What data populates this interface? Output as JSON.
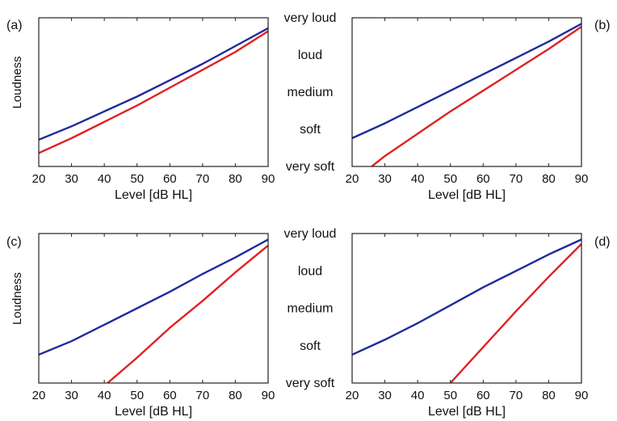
{
  "chart_data": [
    {
      "type": "line",
      "panel_label": "(a)",
      "xlabel": "Level [dB HL]",
      "ylabel": "Loudness",
      "xlim": [
        20,
        90
      ],
      "ylim": [
        0,
        1
      ],
      "xticks": [
        20,
        30,
        40,
        50,
        60,
        70,
        80,
        90
      ],
      "grid": false,
      "series": [
        {
          "color": "#1f2a9c",
          "x": [
            20,
            30,
            40,
            50,
            60,
            70,
            80,
            90
          ],
          "y": [
            0.18,
            0.27,
            0.37,
            0.47,
            0.58,
            0.69,
            0.81,
            0.93
          ]
        },
        {
          "color": "#e02222",
          "x": [
            20,
            30,
            40,
            50,
            60,
            70,
            80,
            90
          ],
          "y": [
            0.09,
            0.19,
            0.3,
            0.41,
            0.53,
            0.65,
            0.77,
            0.91
          ]
        }
      ]
    },
    {
      "type": "line",
      "panel_label": "(b)",
      "xlabel": "Level [dB HL]",
      "ylabel": "",
      "xlim": [
        20,
        90
      ],
      "ylim": [
        0,
        1
      ],
      "xticks": [
        20,
        30,
        40,
        50,
        60,
        70,
        80,
        90
      ],
      "grid": false,
      "series": [
        {
          "color": "#1f2a9c",
          "x": [
            20,
            30,
            40,
            50,
            60,
            70,
            80,
            90
          ],
          "y": [
            0.19,
            0.29,
            0.4,
            0.51,
            0.62,
            0.73,
            0.84,
            0.96
          ]
        },
        {
          "color": "#e02222",
          "x": [
            26,
            30,
            40,
            50,
            60,
            70,
            80,
            90
          ],
          "y": [
            0.0,
            0.07,
            0.22,
            0.37,
            0.51,
            0.65,
            0.79,
            0.94
          ]
        }
      ]
    },
    {
      "type": "line",
      "panel_label": "(c)",
      "xlabel": "Level [dB HL]",
      "ylabel": "Loudness",
      "xlim": [
        20,
        90
      ],
      "ylim": [
        0,
        1
      ],
      "xticks": [
        20,
        30,
        40,
        50,
        60,
        70,
        80,
        90
      ],
      "grid": false,
      "series": [
        {
          "color": "#1f2a9c",
          "x": [
            20,
            30,
            40,
            50,
            60,
            70,
            80,
            90
          ],
          "y": [
            0.19,
            0.28,
            0.39,
            0.5,
            0.61,
            0.73,
            0.84,
            0.96
          ]
        },
        {
          "color": "#e02222",
          "x": [
            41,
            50,
            60,
            70,
            80,
            90
          ],
          "y": [
            0.0,
            0.17,
            0.37,
            0.55,
            0.74,
            0.92
          ]
        }
      ]
    },
    {
      "type": "line",
      "panel_label": "(d)",
      "xlabel": "Level [dB HL]",
      "ylabel": "",
      "xlim": [
        20,
        90
      ],
      "ylim": [
        0,
        1
      ],
      "xticks": [
        20,
        30,
        40,
        50,
        60,
        70,
        80,
        90
      ],
      "grid": false,
      "series": [
        {
          "color": "#1f2a9c",
          "x": [
            20,
            30,
            40,
            50,
            60,
            70,
            80,
            90
          ],
          "y": [
            0.19,
            0.29,
            0.4,
            0.52,
            0.64,
            0.75,
            0.86,
            0.96
          ]
        },
        {
          "color": "#e02222",
          "x": [
            50,
            60,
            70,
            80,
            90
          ],
          "y": [
            0.0,
            0.24,
            0.48,
            0.71,
            0.93
          ]
        }
      ]
    }
  ],
  "loudness_categories": [
    "very loud",
    "loud",
    "medium",
    "soft",
    "very soft"
  ]
}
